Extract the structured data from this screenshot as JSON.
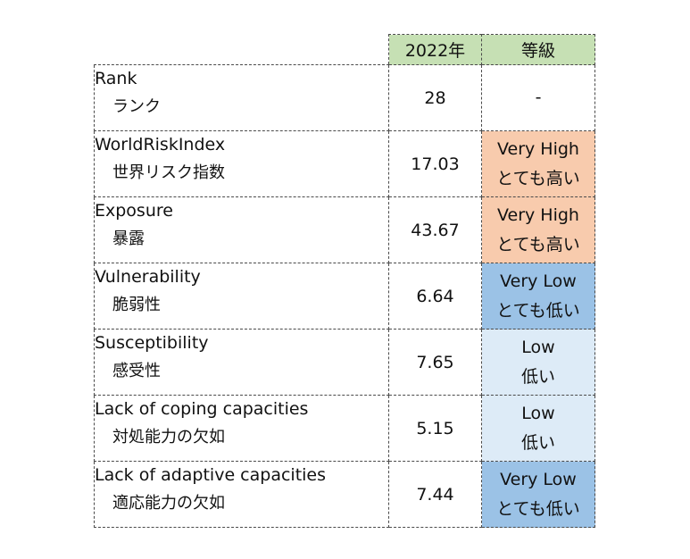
{
  "table": {
    "headers": {
      "year": "2022年",
      "grade": "等級"
    },
    "rows": [
      {
        "label_en": "Rank",
        "label_ja": "ランク",
        "value": "28",
        "grade_en": "-",
        "grade_ja": "",
        "grade_color": "#ffffff"
      },
      {
        "label_en": "WorldRiskIndex",
        "label_ja": "世界リスク指数",
        "value": "17.03",
        "grade_en": "Very High",
        "grade_ja": "とても高い",
        "grade_color": "#f8cbad"
      },
      {
        "label_en": "Exposure",
        "label_ja": "暴露",
        "value": "43.67",
        "grade_en": "Very High",
        "grade_ja": "とても高い",
        "grade_color": "#f8cbad"
      },
      {
        "label_en": "Vulnerability",
        "label_ja": "脆弱性",
        "value": "6.64",
        "grade_en": "Very Low",
        "grade_ja": "とても低い",
        "grade_color": "#9bc2e6"
      },
      {
        "label_en": "Susceptibility",
        "label_ja": "感受性",
        "value": "7.65",
        "grade_en": "Low",
        "grade_ja": "低い",
        "grade_color": "#ddebf7"
      },
      {
        "label_en": "Lack of coping capacities",
        "label_ja": "対処能力の欠如",
        "value": "5.15",
        "grade_en": "Low",
        "grade_ja": "低い",
        "grade_color": "#ddebf7"
      },
      {
        "label_en": "Lack of adaptive capacities",
        "label_ja": "適応能力の欠如",
        "value": "7.44",
        "grade_en": "Very Low",
        "grade_ja": "とても低い",
        "grade_color": "#9bc2e6"
      }
    ]
  }
}
